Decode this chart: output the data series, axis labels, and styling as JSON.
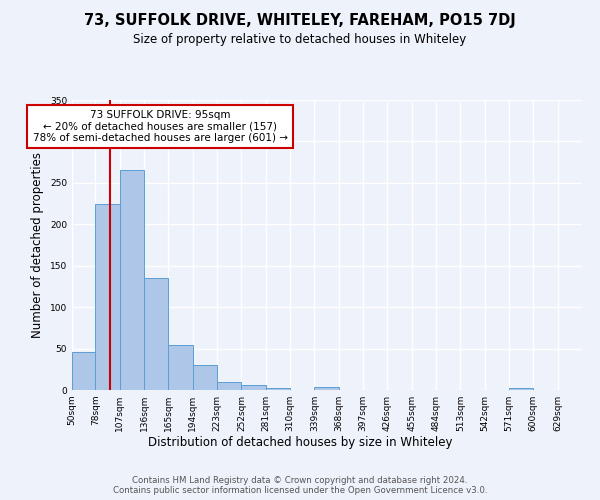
{
  "title": "73, SUFFOLK DRIVE, WHITELEY, FAREHAM, PO15 7DJ",
  "subtitle": "Size of property relative to detached houses in Whiteley",
  "xlabel": "Distribution of detached houses by size in Whiteley",
  "ylabel": "Number of detached properties",
  "bin_labels": [
    "50sqm",
    "78sqm",
    "107sqm",
    "136sqm",
    "165sqm",
    "194sqm",
    "223sqm",
    "252sqm",
    "281sqm",
    "310sqm",
    "339sqm",
    "368sqm",
    "397sqm",
    "426sqm",
    "455sqm",
    "484sqm",
    "513sqm",
    "542sqm",
    "571sqm",
    "600sqm",
    "629sqm"
  ],
  "bar_values": [
    46,
    224,
    265,
    135,
    54,
    30,
    10,
    6,
    3,
    0,
    4,
    0,
    0,
    0,
    0,
    0,
    0,
    0,
    3,
    0,
    0
  ],
  "bar_color": "#aec6e8",
  "bar_edge_color": "#5a9fd4",
  "background_color": "#eef2fb",
  "grid_color": "#ffffff",
  "vline_x": 95,
  "vline_color": "#cc0000",
  "annotation_text": "73 SUFFOLK DRIVE: 95sqm\n← 20% of detached houses are smaller (157)\n78% of semi-detached houses are larger (601) →",
  "annotation_box_color": "#ffffff",
  "annotation_box_edge": "#cc0000",
  "footnote": "Contains HM Land Registry data © Crown copyright and database right 2024.\nContains public sector information licensed under the Open Government Licence v3.0.",
  "ylim": [
    0,
    350
  ],
  "bin_edges": [
    50,
    78,
    107,
    136,
    165,
    194,
    223,
    252,
    281,
    310,
    339,
    368,
    397,
    426,
    455,
    484,
    513,
    542,
    571,
    600,
    629,
    658
  ]
}
